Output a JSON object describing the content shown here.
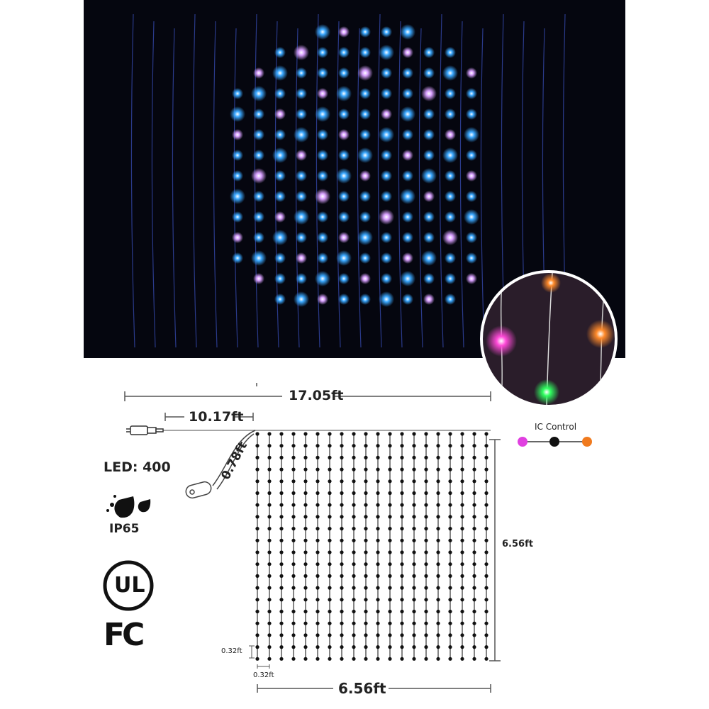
{
  "dimensions": {
    "total_length": "17.05ft",
    "lead_cable": "10.17ft",
    "controller_cable": "0.78ft",
    "height": "6.56ft",
    "width": "6.56ft",
    "vertical_spacing": "0.32ft",
    "horizontal_spacing": "0.32ft"
  },
  "specs": {
    "led_count": "LED: 400",
    "ip_rating": "IP65",
    "ul_mark": "UL",
    "fcc_mark": "FC"
  },
  "ic_control": {
    "label": "IC Control",
    "colors": [
      "#e040e0",
      "#111111",
      "#f07a1e"
    ]
  },
  "icons": [
    "water-drops-icon",
    "ul-logo-icon",
    "fcc-logo-icon",
    "plug-icon",
    "controller-icon"
  ],
  "colors": {
    "led_blue": "#3aa8ff",
    "led_pink": "#d8a0ff",
    "background_dark": "#05060f"
  }
}
